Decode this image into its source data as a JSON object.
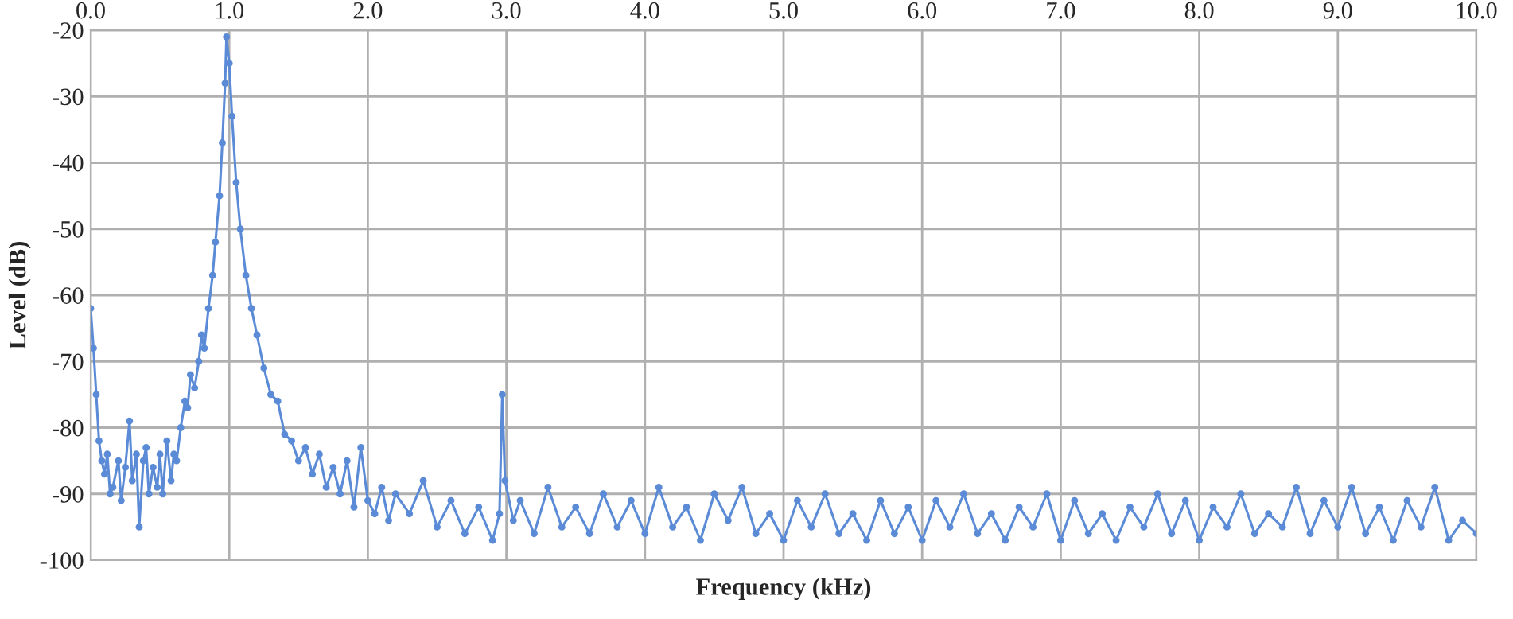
{
  "chart_data": {
    "type": "line",
    "xlabel": "Frequency (kHz)",
    "ylabel": "Level (dB)",
    "xlim": [
      0,
      10
    ],
    "xticks": [
      {
        "value": 0,
        "label": "0.0"
      },
      {
        "value": 1,
        "label": "1.0"
      },
      {
        "value": 2,
        "label": "2.0"
      },
      {
        "value": 3,
        "label": "3.0"
      },
      {
        "value": 4,
        "label": "4.0"
      },
      {
        "value": 5,
        "label": "5.0"
      },
      {
        "value": 6,
        "label": "6.0"
      },
      {
        "value": 7,
        "label": "7.0"
      },
      {
        "value": 8,
        "label": "8.0"
      },
      {
        "value": 9,
        "label": "9.0"
      },
      {
        "value": 10,
        "label": "10.0"
      }
    ],
    "ylim": [
      -100,
      -20
    ],
    "yticks": [
      -100,
      -90,
      -80,
      -70,
      -60,
      -50,
      -40,
      -30,
      -20
    ],
    "grid": true,
    "marker": "circle",
    "line_style": "solid",
    "legend": false,
    "series": [
      {
        "color": "#5b8bd6",
        "x": [
          0.0,
          0.02,
          0.04,
          0.06,
          0.08,
          0.1,
          0.12,
          0.14,
          0.16,
          0.2,
          0.22,
          0.25,
          0.28,
          0.3,
          0.33,
          0.35,
          0.38,
          0.4,
          0.42,
          0.45,
          0.48,
          0.5,
          0.52,
          0.55,
          0.58,
          0.6,
          0.62,
          0.65,
          0.68,
          0.7,
          0.72,
          0.75,
          0.78,
          0.8,
          0.82,
          0.85,
          0.88,
          0.9,
          0.93,
          0.95,
          0.97,
          0.98,
          1.0,
          1.02,
          1.05,
          1.08,
          1.12,
          1.16,
          1.2,
          1.25,
          1.3,
          1.35,
          1.4,
          1.45,
          1.5,
          1.55,
          1.6,
          1.65,
          1.7,
          1.75,
          1.8,
          1.85,
          1.9,
          1.95,
          2.0,
          2.05,
          2.1,
          2.15,
          2.2,
          2.3,
          2.4,
          2.5,
          2.6,
          2.7,
          2.8,
          2.9,
          2.95,
          2.97,
          2.99,
          3.05,
          3.1,
          3.2,
          3.3,
          3.4,
          3.5,
          3.6,
          3.7,
          3.8,
          3.9,
          4.0,
          4.1,
          4.2,
          4.3,
          4.4,
          4.5,
          4.6,
          4.7,
          4.8,
          4.9,
          5.0,
          5.1,
          5.2,
          5.3,
          5.4,
          5.5,
          5.6,
          5.7,
          5.8,
          5.9,
          6.0,
          6.1,
          6.2,
          6.3,
          6.4,
          6.5,
          6.6,
          6.7,
          6.8,
          6.9,
          7.0,
          7.1,
          7.2,
          7.3,
          7.4,
          7.5,
          7.6,
          7.7,
          7.8,
          7.9,
          8.0,
          8.1,
          8.2,
          8.3,
          8.4,
          8.5,
          8.6,
          8.7,
          8.8,
          8.9,
          9.0,
          9.1,
          9.2,
          9.3,
          9.4,
          9.5,
          9.6,
          9.7,
          9.8,
          9.9,
          10.0
        ],
        "values": [
          -62,
          -68,
          -75,
          -82,
          -85,
          -87,
          -84,
          -90,
          -89,
          -85,
          -91,
          -86,
          -79,
          -88,
          -84,
          -95,
          -85,
          -83,
          -90,
          -86,
          -89,
          -84,
          -90,
          -82,
          -88,
          -84,
          -85,
          -80,
          -76,
          -77,
          -72,
          -74,
          -70,
          -66,
          -68,
          -62,
          -57,
          -52,
          -45,
          -37,
          -28,
          -21,
          -25,
          -33,
          -43,
          -50,
          -57,
          -62,
          -66,
          -71,
          -75,
          -76,
          -81,
          -82,
          -85,
          -83,
          -87,
          -84,
          -89,
          -86,
          -90,
          -85,
          -92,
          -83,
          -91,
          -93,
          -89,
          -94,
          -90,
          -93,
          -88,
          -95,
          -91,
          -96,
          -92,
          -97,
          -93,
          -75,
          -88,
          -94,
          -91,
          -96,
          -89,
          -95,
          -92,
          -96,
          -90,
          -95,
          -91,
          -96,
          -89,
          -95,
          -92,
          -97,
          -90,
          -94,
          -89,
          -96,
          -93,
          -97,
          -91,
          -95,
          -90,
          -96,
          -93,
          -97,
          -91,
          -96,
          -92,
          -97,
          -91,
          -95,
          -90,
          -96,
          -93,
          -97,
          -92,
          -95,
          -90,
          -97,
          -91,
          -96,
          -93,
          -97,
          -92,
          -95,
          -90,
          -96,
          -91,
          -97,
          -92,
          -95,
          -90,
          -96,
          -93,
          -95,
          -89,
          -96,
          -91,
          -95,
          -89,
          -96,
          -92,
          -97,
          -91,
          -95,
          -89,
          -97,
          -94,
          -96
        ]
      }
    ]
  }
}
